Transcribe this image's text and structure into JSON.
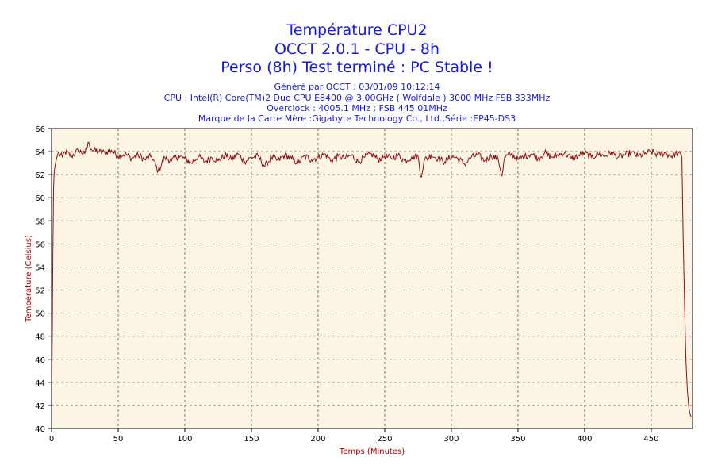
{
  "chart_data": {
    "type": "line",
    "title_lines": [
      "Température CPU2",
      "OCCT 2.0.1 - CPU - 8h",
      "Perso (8h) Test terminé : PC Stable !"
    ],
    "info_lines": [
      "Généré par OCCT : 03/01/09 10:12:14",
      "CPU : Intel(R) Core(TM)2 Duo CPU E8400 @ 3.00GHz ( Wolfdale ) 3000 MHz FSB 333MHz",
      "Overclock : 4005.1 MHz ; FSB 445.01MHz",
      "Marque de la Carte Mère :Gigabyte Technology Co., Ltd.,Série :EP45-DS3"
    ],
    "xlabel": "Temps (Minutes)",
    "ylabel": "Température (Celsius)",
    "xlim": [
      0,
      481
    ],
    "ylim": [
      40,
      66
    ],
    "xticks": [
      0,
      50,
      100,
      150,
      200,
      250,
      300,
      350,
      400,
      450
    ],
    "yticks": [
      40,
      42,
      44,
      46,
      48,
      50,
      52,
      54,
      56,
      58,
      60,
      62,
      64,
      66
    ],
    "grid": true,
    "colors": {
      "series": "#8b1010",
      "plot_bg": "#fcf5e3",
      "title": "#1a1ad4",
      "axis_label": "#b00000"
    },
    "series": [
      {
        "x": [
          0,
          0.5,
          1,
          1.5,
          2,
          3,
          4,
          5,
          8,
          10,
          15,
          20,
          25,
          28,
          30,
          35,
          40,
          45,
          50,
          55,
          60,
          65,
          70,
          75,
          80,
          85,
          90,
          95,
          100,
          105,
          110,
          115,
          120,
          125,
          130,
          135,
          140,
          145,
          150,
          155,
          160,
          165,
          170,
          175,
          180,
          185,
          190,
          195,
          200,
          205,
          210,
          215,
          220,
          225,
          230,
          235,
          240,
          245,
          250,
          255,
          260,
          265,
          270,
          275,
          277,
          280,
          285,
          290,
          295,
          300,
          305,
          310,
          315,
          320,
          325,
          330,
          335,
          338,
          340,
          345,
          350,
          355,
          360,
          365,
          370,
          375,
          380,
          385,
          390,
          395,
          400,
          405,
          410,
          415,
          420,
          425,
          430,
          435,
          440,
          445,
          450,
          455,
          460,
          465,
          470,
          473,
          474,
          475,
          476,
          477,
          478,
          479,
          480
        ],
        "y": [
          42.9,
          47.0,
          55.5,
          60.8,
          62.3,
          63.0,
          63.5,
          63.9,
          63.5,
          64.0,
          63.6,
          64.1,
          63.8,
          64.8,
          64.2,
          64.0,
          63.9,
          64.1,
          63.6,
          63.8,
          63.4,
          63.7,
          63.3,
          63.6,
          62.3,
          63.5,
          63.2,
          63.6,
          63.4,
          63.0,
          63.6,
          63.1,
          63.5,
          63.2,
          63.7,
          63.3,
          63.8,
          63.1,
          63.5,
          63.6,
          62.7,
          63.5,
          63.2,
          63.7,
          63.4,
          63.0,
          63.6,
          63.3,
          63.5,
          63.8,
          63.2,
          63.6,
          63.4,
          63.7,
          63.1,
          63.5,
          63.8,
          63.3,
          63.6,
          63.4,
          63.7,
          63.2,
          63.5,
          63.6,
          61.8,
          63.3,
          63.7,
          63.4,
          63.1,
          63.6,
          63.4,
          62.9,
          63.5,
          63.7,
          63.2,
          63.6,
          63.4,
          61.9,
          63.5,
          63.8,
          63.3,
          63.6,
          63.8,
          63.4,
          63.9,
          63.5,
          63.7,
          63.9,
          63.4,
          63.6,
          63.9,
          63.5,
          63.8,
          63.6,
          63.9,
          63.5,
          63.7,
          63.9,
          63.6,
          63.8,
          64.0,
          63.7,
          63.9,
          63.6,
          63.9,
          63.5,
          56.5,
          51.0,
          46.0,
          43.5,
          42.0,
          41.3,
          41.0
        ]
      }
    ]
  }
}
